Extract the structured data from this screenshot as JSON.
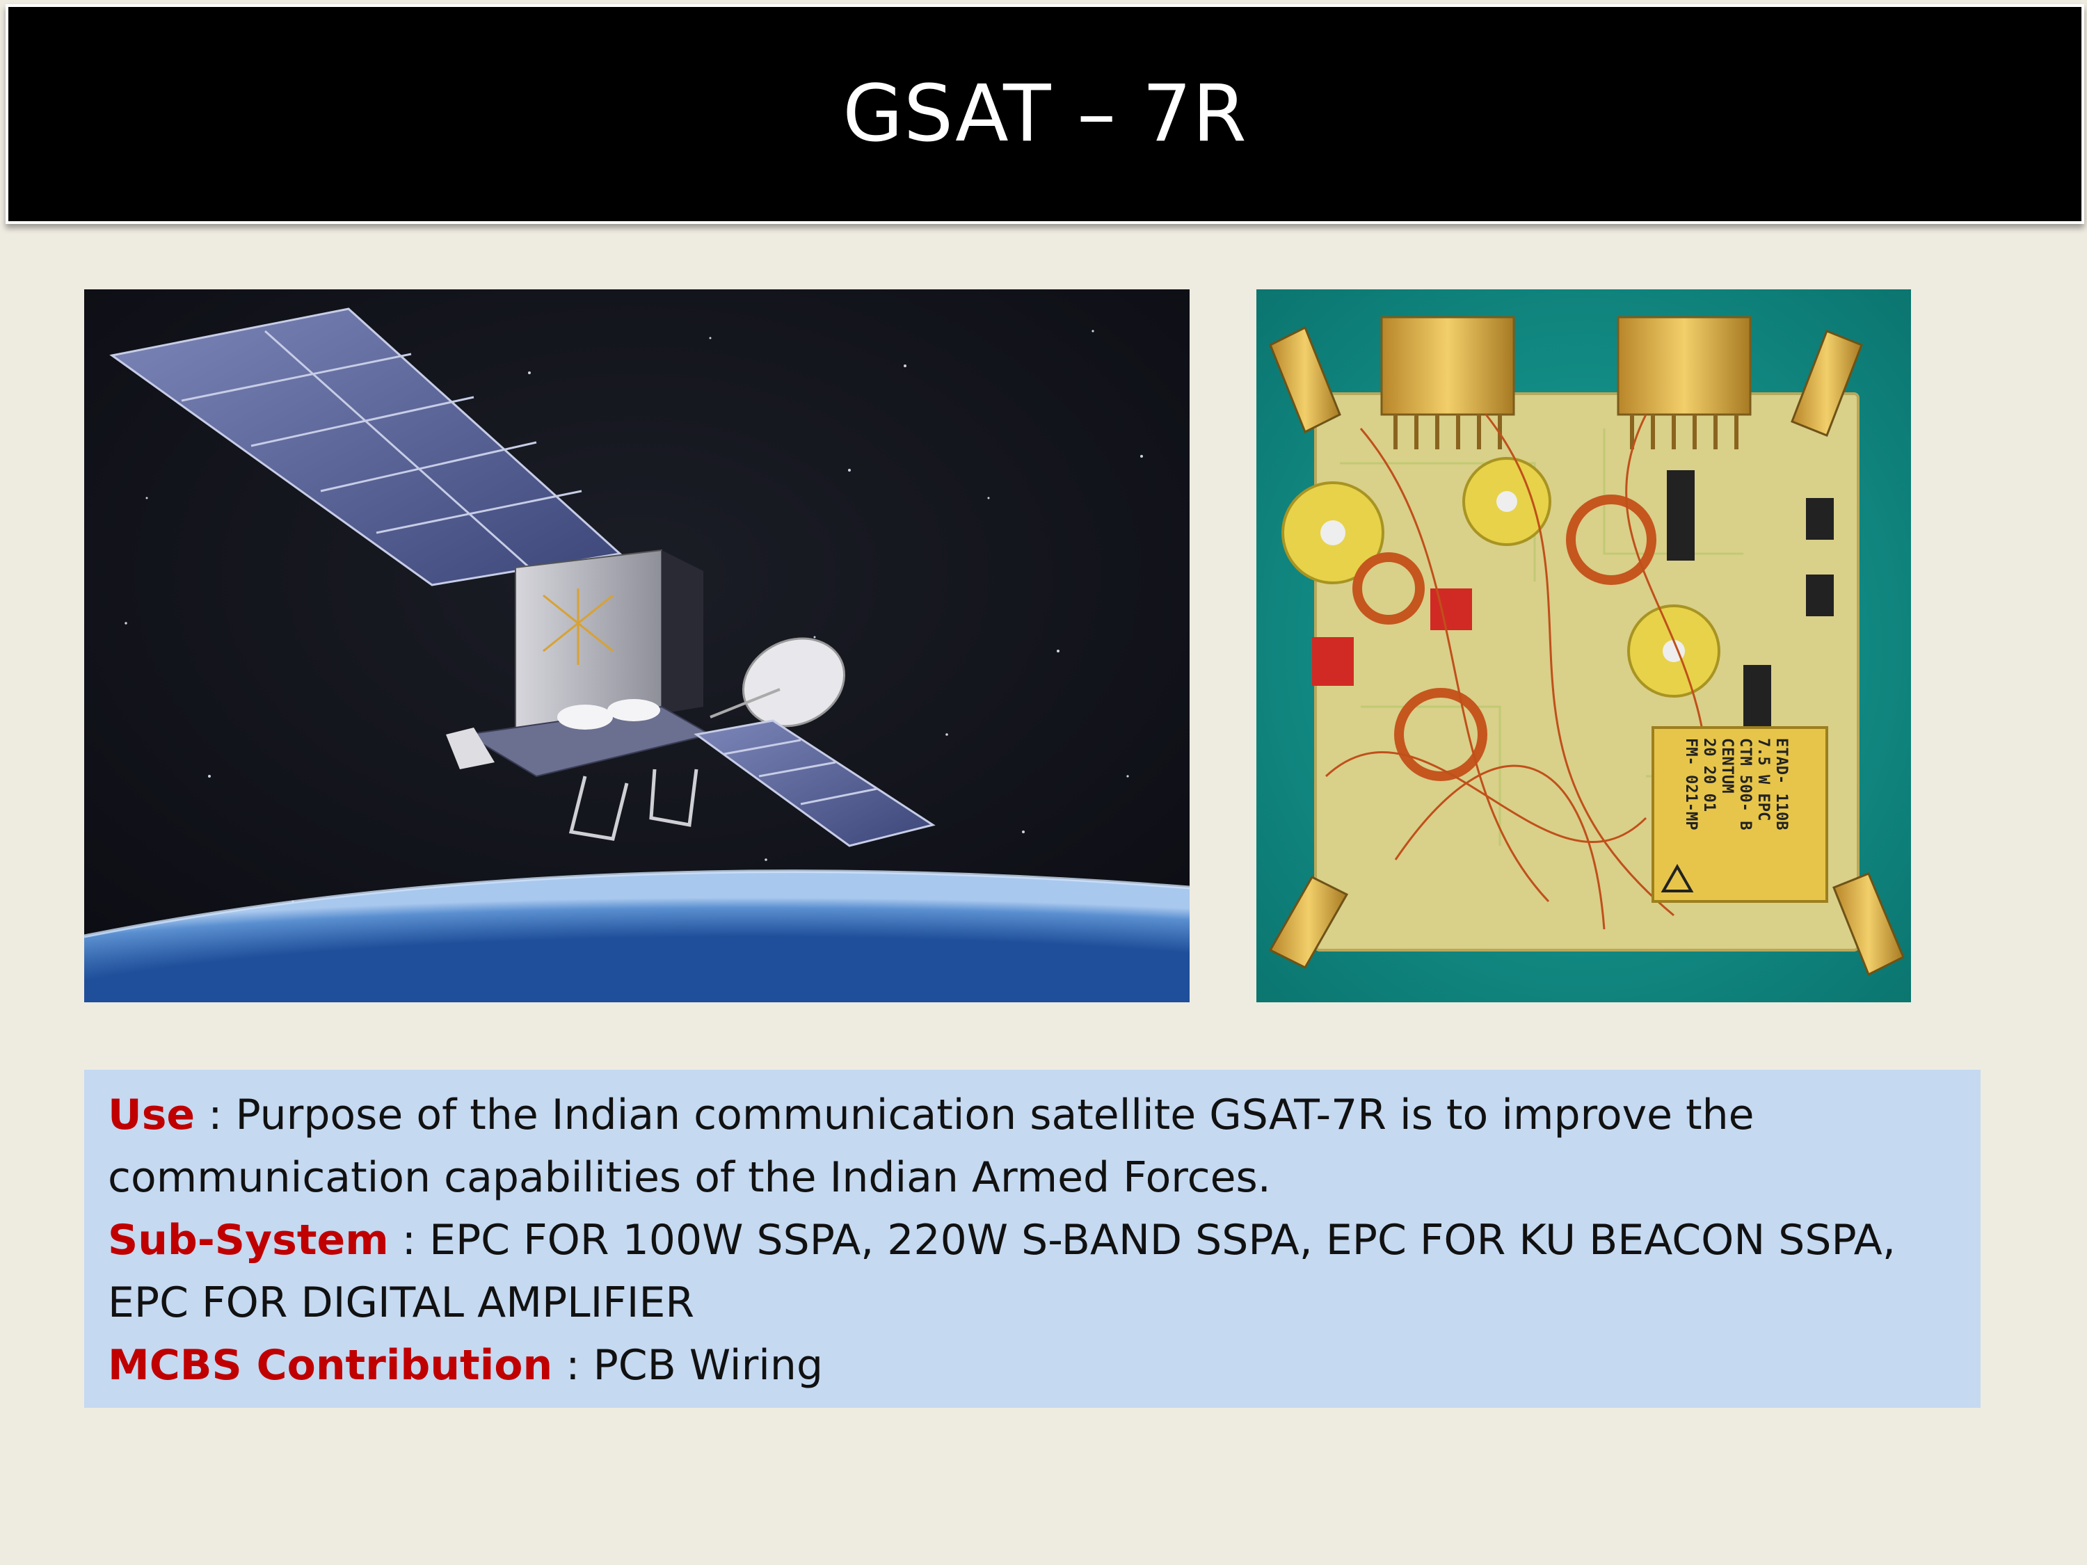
{
  "slide": {
    "title": "GSAT – 7R"
  },
  "images": {
    "satellite_icon": "satellite-image",
    "pcb_icon": "epc-circuit-board-image",
    "pcb_module_label": [
      "ETAD- 110B",
      "7.5 W  EPC",
      "CTM 500- B",
      "CENTUM",
      "20 20 01",
      "FM- 021-MP"
    ]
  },
  "info": {
    "use_label": "Use",
    "use_text": " : Purpose of the Indian communication satellite GSAT-7R is to improve the communication capabilities of the Indian Armed Forces.",
    "subsystem_label": "Sub-System",
    "subsystem_text": " : EPC FOR 100W SSPA, 220W S-BAND SSPA, EPC FOR KU BEACON SSPA, EPC FOR DIGITAL AMPLIFIER",
    "contribution_label": "MCBS Contribution",
    "contribution_text": " : PCB Wiring"
  },
  "colors": {
    "background": "#EEEBE1",
    "title_bar": "#000000",
    "info_box": "#C5D9F1",
    "label_red": "#C00000"
  }
}
